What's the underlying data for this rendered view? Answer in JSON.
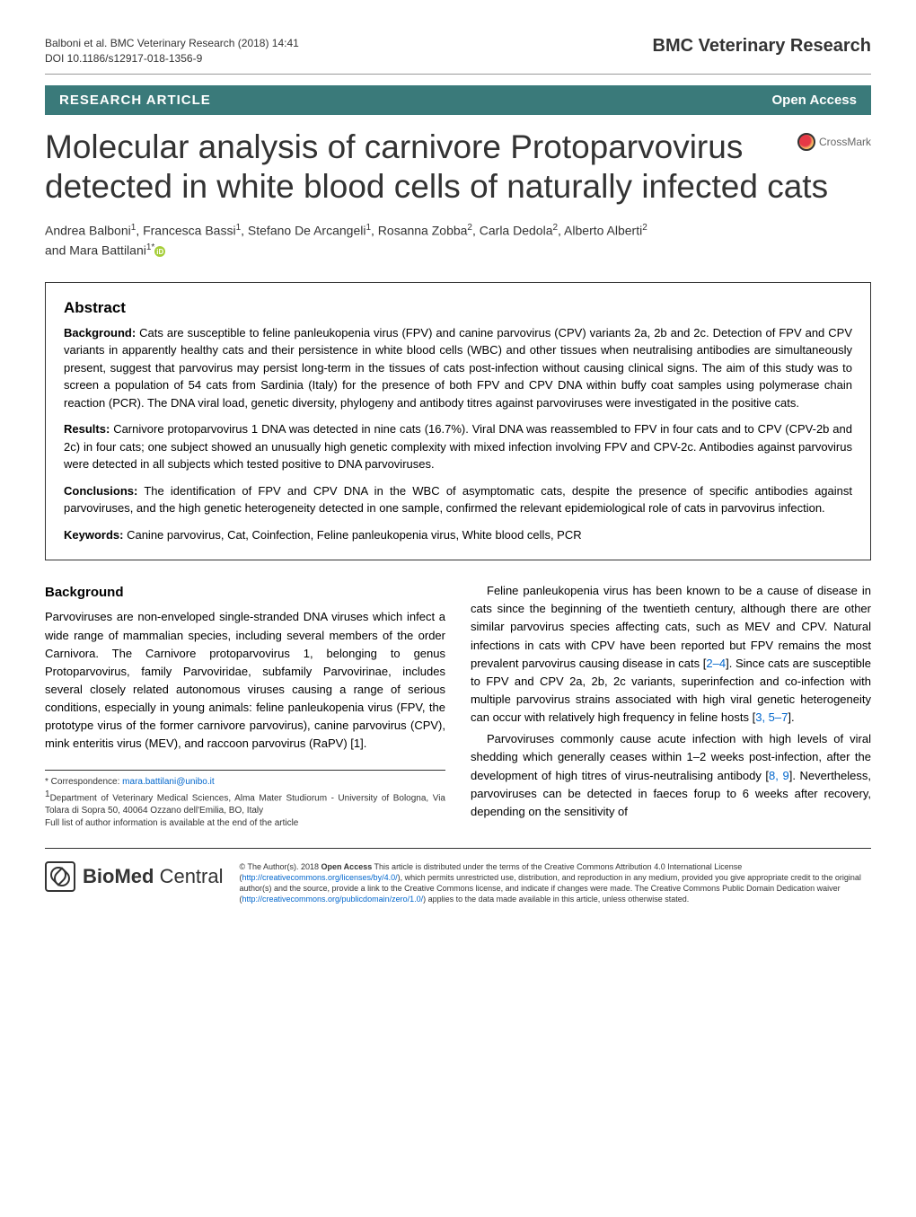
{
  "header": {
    "citation": "Balboni et al. BMC Veterinary Research  (2018) 14:41",
    "doi": "DOI 10.1186/s12917-018-1356-9",
    "journal": "BMC Veterinary Research"
  },
  "article_type_bar": {
    "type": "RESEARCH ARTICLE",
    "access": "Open Access",
    "bg_color": "#3a7a7a"
  },
  "crossmark": {
    "label": "CrossMark"
  },
  "title": "Molecular analysis of carnivore Protoparvovirus detected in white blood cells of naturally infected cats",
  "authors": {
    "line1": "Andrea Balboni",
    "a1_aff": "1",
    "a2": ", Francesca Bassi",
    "a2_aff": "1",
    "a3": ", Stefano De Arcangeli",
    "a3_aff": "1",
    "a4": ", Rosanna Zobba",
    "a4_aff": "2",
    "a5": ", Carla Dedola",
    "a5_aff": "2",
    "a6": ", Alberto Alberti",
    "a6_aff": "2",
    "line2": "and Mara Battilani",
    "a7_aff": "1*"
  },
  "abstract": {
    "heading": "Abstract",
    "background": {
      "label": "Background:",
      "text": " Cats are susceptible to feline panleukopenia virus (FPV) and canine parvovirus (CPV) variants 2a, 2b and 2c. Detection of FPV and CPV variants in apparently healthy cats and their persistence in white blood cells (WBC) and other tissues when neutralising antibodies are simultaneously present, suggest that parvovirus may persist long-term in the tissues of cats post-infection without causing clinical signs. The aim of this study was to screen a population of 54 cats from Sardinia (Italy) for the presence of both FPV and CPV DNA within buffy coat samples using polymerase chain reaction (PCR). The DNA viral load, genetic diversity, phylogeny and antibody titres against parvoviruses were investigated in the positive cats."
    },
    "results": {
      "label": "Results:",
      "text": " Carnivore protoparvovirus 1 DNA was detected in nine cats (16.7%). Viral DNA was reassembled to FPV in four cats and to CPV (CPV-2b and 2c) in four cats; one subject showed an unusually high genetic complexity with mixed infection involving FPV and CPV-2c. Antibodies against parvovirus were detected in all subjects which tested positive to DNA parvoviruses."
    },
    "conclusions": {
      "label": "Conclusions:",
      "text": " The identification of FPV and CPV DNA in the WBC of asymptomatic cats, despite the presence of specific antibodies against parvoviruses, and the high genetic heterogeneity detected in one sample, confirmed the relevant epidemiological role of cats in parvovirus infection."
    },
    "keywords": {
      "label": "Keywords:",
      "text": " Canine parvovirus, Cat, Coinfection, Feline panleukopenia virus, White blood cells, PCR"
    }
  },
  "body": {
    "left": {
      "heading": "Background",
      "p1": "Parvoviruses are non-enveloped single-stranded DNA viruses which infect a wide range of mammalian species, including several members of the order Carnivora. The Carnivore protoparvovirus 1, belonging to genus Protoparvovirus, family Parvoviridae, subfamily Parvovirinae, includes several closely related autonomous viruses causing a range of serious conditions, especially in young animals: feline panleukopenia virus (FPV, the prototype virus of the former carnivore parvovirus), canine parvovirus (CPV), mink enteritis virus (MEV), and raccoon parvovirus (RaPV) [1]."
    },
    "right": {
      "p1a": "Feline panleukopenia virus has been known to be a cause of disease in cats since the beginning of the twentieth century, although there are other similar parvovirus species affecting cats, such as MEV and CPV. Natural infections in cats with CPV have been reported but FPV remains the most prevalent parvovirus causing disease in cats [",
      "ref1": "2–4",
      "p1b": "]. Since cats are susceptible to FPV and CPV 2a, 2b, 2c variants, superinfection and co-infection with multiple parvovirus strains associated with high viral genetic heterogeneity can occur with relatively high frequency in feline hosts [",
      "ref2": "3, 5–7",
      "p1c": "].",
      "p2a": "Parvoviruses commonly cause acute infection with high levels of viral shedding which generally ceases within 1–2 weeks post-infection, after the development of high titres of virus-neutralising antibody [",
      "ref3": "8, 9",
      "p2b": "]. Nevertheless, parvoviruses can be detected in faeces forup to 6 weeks after recovery, depending on the sensitivity of"
    }
  },
  "correspondence": {
    "line1": "* Correspondence: ",
    "email": "mara.battilani@unibo.it",
    "line2": "Department of Veterinary Medical Sciences, Alma Mater Studiorum - University of Bologna, Via Tolara di Sopra 50, 40064 Ozzano dell'Emilia, BO, Italy",
    "line3": "Full list of author information is available at the end of the article",
    "aff_num": "1"
  },
  "footer": {
    "logo_bold": "BioMed",
    "logo_light": " Central",
    "license_a": "© The Author(s). 2018 ",
    "oa_label": "Open Access",
    "license_b": " This article is distributed under the terms of the Creative Commons Attribution 4.0 International License (",
    "url1": "http://creativecommons.org/licenses/by/4.0/",
    "license_c": "), which permits unrestricted use, distribution, and reproduction in any medium, provided you give appropriate credit to the original author(s) and the source, provide a link to the Creative Commons license, and indicate if changes were made. The Creative Commons Public Domain Dedication waiver (",
    "url2": "http://creativecommons.org/publicdomain/zero/1.0/",
    "license_d": ") applies to the data made available in this article, unless otherwise stated."
  }
}
